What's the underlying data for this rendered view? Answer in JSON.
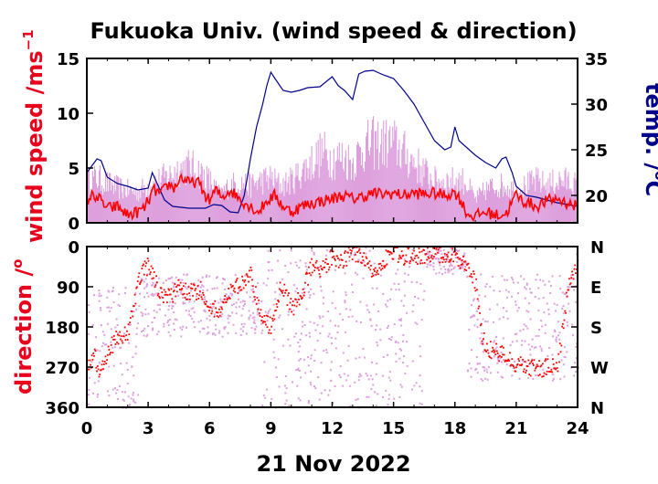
{
  "colors": {
    "wind_speed_mean": "#ff0000",
    "wind_speed_gust": "#dda0dd",
    "temperature": "#00008b",
    "direction_mean": "#ff0000",
    "direction_raw": "#dda0dd",
    "axis": "#000000"
  },
  "chart_data": [
    {
      "type": "line",
      "title": "Fukuoka Univ. (wind speed & direction)",
      "ylabel": "wind speed /ms",
      "ylabel_superscript": "−1",
      "ylabel_right": "temp. /",
      "ylabel_right_superscript": "o",
      "ylabel_right_unit": "C",
      "xlim": [
        0,
        24
      ],
      "ylim": [
        0,
        15
      ],
      "ylim_right": [
        17,
        35
      ],
      "yticks": [
        0,
        5,
        10,
        15
      ],
      "yticks_right": [
        20,
        25,
        30,
        35
      ],
      "series": [
        {
          "role": "temperature",
          "axis": "right",
          "x": [
            0,
            0.3,
            0.5,
            0.7,
            1.0,
            1.5,
            2.0,
            2.5,
            3.0,
            3.2,
            3.5,
            3.8,
            4.2,
            5.0,
            5.8,
            6.2,
            6.6,
            7.0,
            7.4,
            7.7,
            8.0,
            8.3,
            8.6,
            8.8,
            9.0,
            9.2,
            9.6,
            10.0,
            10.4,
            10.8,
            11.4,
            12.0,
            12.3,
            12.6,
            13.0,
            13.3,
            13.6,
            14.0,
            14.5,
            15.0,
            15.5,
            16.0,
            16.5,
            17.0,
            17.5,
            17.8,
            18.0,
            18.2,
            18.6,
            19.0,
            19.5,
            20.0,
            20.3,
            20.5,
            20.8,
            21.0,
            21.5,
            22.0,
            22.5,
            23.0,
            23.5,
            24.0
          ],
          "y": [
            22.5,
            23.4,
            24.0,
            23.8,
            22.0,
            21.3,
            21.0,
            20.6,
            20.8,
            22.5,
            21.0,
            19.5,
            18.8,
            18.6,
            18.6,
            19.0,
            18.9,
            18.2,
            18.1,
            20.0,
            24.0,
            27.5,
            30.0,
            32.0,
            33.5,
            32.8,
            31.5,
            31.3,
            31.5,
            31.8,
            31.9,
            33.0,
            32.0,
            31.5,
            30.5,
            33.3,
            33.6,
            33.7,
            33.2,
            32.8,
            31.5,
            30.0,
            28.0,
            26.0,
            25.0,
            25.3,
            27.5,
            26.0,
            25.2,
            24.4,
            23.6,
            23.0,
            24.0,
            24.2,
            22.5,
            21.0,
            20.0,
            19.8,
            19.5,
            19.2,
            19.0,
            18.8
          ]
        },
        {
          "role": "wind_speed_gust",
          "axis": "left",
          "x": [
            0,
            0.5,
            1.0,
            1.5,
            2.0,
            2.5,
            3.0,
            3.5,
            4.0,
            4.5,
            5.0,
            5.5,
            6.0,
            6.5,
            7.0,
            7.5,
            8.0,
            8.5,
            9.0,
            9.5,
            10.0,
            10.5,
            11.0,
            11.5,
            12.0,
            12.5,
            13.0,
            13.5,
            14.0,
            14.5,
            15.0,
            15.5,
            16.0,
            16.5,
            17.0,
            17.5,
            18.0,
            18.5,
            19.0,
            19.5,
            20.0,
            20.5,
            21.0,
            21.5,
            22.0,
            22.5,
            23.0,
            23.5,
            24.0
          ],
          "y": [
            4.5,
            4.8,
            4.2,
            3.8,
            3.5,
            3.3,
            4.0,
            4.5,
            5.0,
            5.8,
            6.0,
            5.5,
            4.5,
            3.0,
            4.0,
            4.3,
            4.0,
            4.5,
            4.8,
            4.0,
            4.5,
            5.5,
            6.5,
            7.5,
            7.0,
            7.0,
            6.5,
            8.0,
            8.5,
            8.5,
            8.5,
            7.5,
            6.5,
            5.5,
            4.5,
            4.5,
            4.5,
            4.5,
            2.5,
            3.5,
            4.0,
            4.0,
            3.5,
            4.0,
            4.5,
            4.0,
            4.5,
            4.5,
            4.0
          ]
        },
        {
          "role": "wind_speed_mean",
          "axis": "left",
          "x": [
            0,
            0.3,
            0.6,
            1.0,
            1.5,
            2.0,
            2.5,
            2.8,
            3.0,
            3.3,
            3.6,
            4.0,
            4.3,
            4.6,
            5.0,
            5.4,
            5.8,
            6.0,
            6.3,
            6.6,
            7.0,
            7.3,
            7.6,
            8.0,
            8.4,
            8.8,
            9.2,
            9.6,
            10.0,
            10.5,
            11.0,
            11.5,
            12.0,
            12.5,
            13.0,
            13.5,
            14.0,
            14.5,
            15.0,
            15.5,
            16.0,
            16.5,
            17.0,
            17.5,
            18.0,
            18.3,
            18.6,
            19.0,
            19.5,
            20.0,
            20.5,
            21.0,
            21.3,
            21.6,
            22.0,
            22.5,
            23.0,
            23.5,
            24.0
          ],
          "y": [
            2.0,
            2.6,
            2.2,
            1.3,
            1.5,
            0.7,
            1.0,
            1.3,
            2.0,
            3.0,
            2.6,
            3.5,
            3.2,
            4.2,
            3.6,
            3.8,
            2.5,
            2.0,
            3.0,
            2.3,
            3.0,
            2.5,
            2.0,
            1.5,
            1.0,
            2.0,
            2.5,
            1.5,
            1.0,
            1.5,
            1.8,
            2.0,
            2.2,
            2.5,
            2.2,
            2.4,
            2.7,
            2.6,
            2.7,
            2.5,
            2.7,
            2.6,
            2.7,
            2.5,
            2.8,
            2.0,
            0.8,
            0.6,
            1.0,
            0.7,
            0.8,
            2.6,
            2.0,
            1.8,
            1.5,
            2.0,
            2.2,
            1.8,
            1.5
          ]
        }
      ]
    },
    {
      "type": "scatter",
      "ylabel": "direction /",
      "ylabel_superscript": "o",
      "xlabel": "21 Nov 2022",
      "xlim": [
        0,
        24
      ],
      "ylim": [
        360,
        0
      ],
      "yticks": [
        0,
        90,
        180,
        270,
        360
      ],
      "xticks": [
        0,
        3,
        6,
        9,
        12,
        15,
        18,
        21,
        24
      ],
      "yticks_right": [
        "N",
        "E",
        "S",
        "W",
        "N"
      ],
      "series": [
        {
          "role": "direction_raw",
          "bands": [
            {
              "x0": 0,
              "x1": 2.5,
              "d0": 90,
              "d1": 360
            },
            {
              "x0": 2.5,
              "x1": 8.5,
              "d0": 60,
              "d1": 200
            },
            {
              "x0": 8.5,
              "x1": 16.5,
              "d0": 0,
              "d1": 360
            },
            {
              "x0": 16.5,
              "x1": 18.5,
              "d0": 0,
              "d1": 60
            },
            {
              "x0": 18.5,
              "x1": 24,
              "d0": 60,
              "d1": 300
            }
          ]
        },
        {
          "role": "direction_mean",
          "x": [
            0,
            0.3,
            0.6,
            1.0,
            1.5,
            2.0,
            2.3,
            2.6,
            3.0,
            3.5,
            4.0,
            4.5,
            5.0,
            5.5,
            6.0,
            6.5,
            7.0,
            7.5,
            8.0,
            8.3,
            8.6,
            9.0,
            9.5,
            10.0,
            10.5,
            11.0,
            11.5,
            12.0,
            12.5,
            13.0,
            13.5,
            14.0,
            14.5,
            15.0,
            15.5,
            16.0,
            16.5,
            17.0,
            17.5,
            18.0,
            18.5,
            19.0,
            19.3,
            19.6,
            20.0,
            20.5,
            21.0,
            21.5,
            22.0,
            22.5,
            23.0,
            23.5,
            24.0
          ],
          "y": [
            270,
            240,
            280,
            230,
            200,
            190,
            120,
            60,
            40,
            100,
            110,
            90,
            100,
            95,
            130,
            150,
            100,
            80,
            60,
            120,
            160,
            180,
            80,
            140,
            100,
            40,
            50,
            20,
            30,
            10,
            20,
            60,
            30,
            10,
            20,
            15,
            25,
            10,
            20,
            15,
            40,
            80,
            200,
            230,
            230,
            250,
            260,
            270,
            270,
            270,
            260,
            90,
            20
          ]
        }
      ]
    }
  ]
}
